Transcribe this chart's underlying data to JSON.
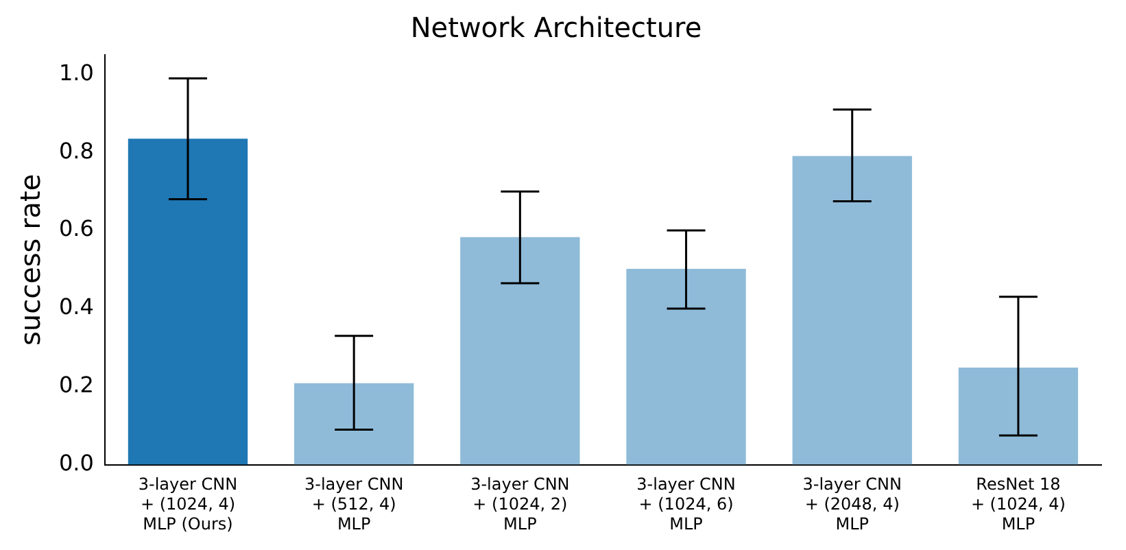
{
  "chart_data": {
    "type": "bar",
    "title": "Network Architecture",
    "ylabel": "success rate",
    "categories": [
      "3-layer CNN\n+ (1024, 4)\nMLP (Ours)",
      "3-layer CNN\n+ (512, 4)\nMLP",
      "3-layer CNN\n+ (1024, 2)\nMLP",
      "3-layer CNN\n+ (1024, 6)\nMLP",
      "3-layer CNN\n+ (2048, 4)\nMLP",
      "ResNet 18\n+ (1024, 4)\nMLP"
    ],
    "values": [
      0.835,
      0.209,
      0.583,
      0.502,
      0.791,
      0.249
    ],
    "colors": [
      "#1f77b4",
      "#8fbbd9",
      "#8fbbd9",
      "#8fbbd9",
      "#8fbbd9",
      "#8fbbd9"
    ],
    "errors": [
      [
        0.68,
        0.99
      ],
      [
        0.09,
        0.33
      ],
      [
        0.465,
        0.7
      ],
      [
        0.4,
        0.6
      ],
      [
        0.675,
        0.91
      ],
      [
        0.075,
        0.43
      ]
    ],
    "ylim": [
      0,
      1.05
    ],
    "yticks": [
      {
        "value": 0,
        "label": "0.0"
      },
      {
        "value": 0.2,
        "label": "0.2"
      },
      {
        "value": 0.4,
        "label": "0.4"
      },
      {
        "value": 0.6,
        "label": "0.6"
      },
      {
        "value": 0.8,
        "label": "0.8"
      },
      {
        "value": 1,
        "label": "1.0"
      }
    ],
    "grid": false,
    "legend": false
  }
}
